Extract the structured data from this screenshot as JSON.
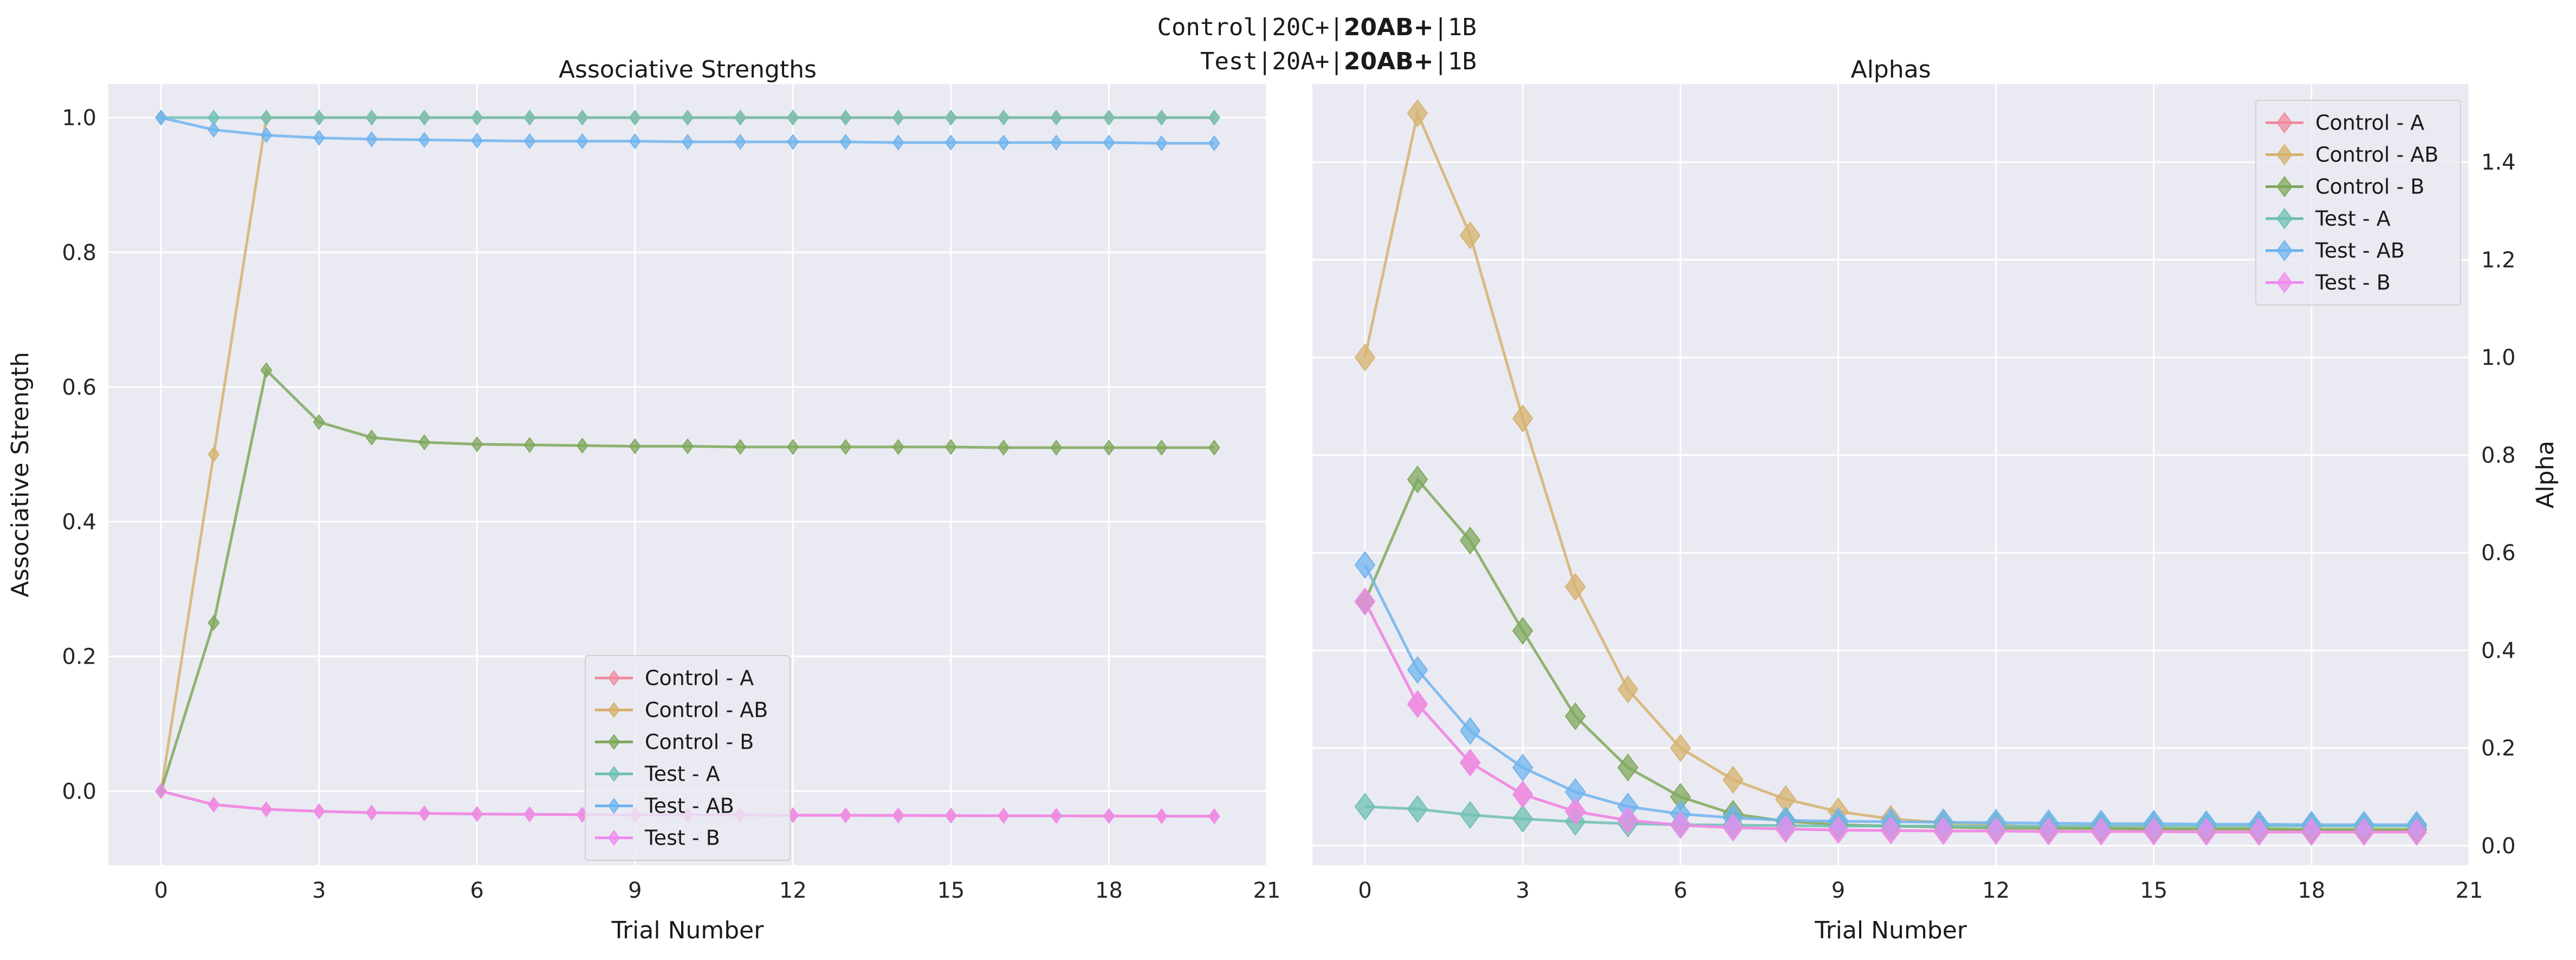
{
  "figure": {
    "suptitle_lines": [
      {
        "prefix": "Control|20C+|",
        "bold": "20AB+",
        "suffix": "|1B"
      },
      {
        "prefix": "Test|20A+|",
        "bold": "20AB+",
        "suffix": "|1B"
      }
    ]
  },
  "chart_data": [
    {
      "type": "line",
      "title": "Associative Strengths",
      "xlabel": "Trial Number",
      "ylabel": "Associative Strength",
      "xlim": [
        -1,
        21
      ],
      "ylim": [
        -0.11,
        1.05
      ],
      "xticks": [
        0,
        3,
        6,
        9,
        12,
        15,
        18,
        21
      ],
      "yticks": [
        0.0,
        0.2,
        0.4,
        0.6,
        0.8,
        1.0
      ],
      "ytick_labels": [
        "0.0",
        "0.2",
        "0.4",
        "0.6",
        "0.8",
        "1.0"
      ],
      "grid": true,
      "legend_position": "bottom-center",
      "marker": "diamond",
      "x": [
        0,
        1,
        2,
        3,
        4,
        5,
        6,
        7,
        8,
        9,
        10,
        11,
        12,
        13,
        14,
        15,
        16,
        17,
        18,
        19,
        20
      ],
      "series": [
        {
          "name": "Control - A",
          "color": "#f08ca0",
          "values": [
            0,
            -0.02,
            -0.027,
            -0.03,
            -0.032,
            -0.033,
            -0.034,
            -0.0345,
            -0.035,
            -0.0352,
            -0.0354,
            -0.0356,
            -0.0358,
            -0.036,
            -0.0362,
            -0.0364,
            -0.0366,
            -0.0368,
            -0.037,
            -0.0372,
            -0.0374
          ]
        },
        {
          "name": "Control - AB",
          "color": "#d6b26e",
          "values": [
            0,
            0.5,
            1.0,
            1.0,
            1.0,
            1.0,
            1.0,
            1.0,
            1.0,
            1.0,
            1.0,
            1.0,
            1.0,
            1.0,
            1.0,
            1.0,
            1.0,
            1.0,
            1.0,
            1.0,
            1.0
          ]
        },
        {
          "name": "Control - B",
          "color": "#7fa85c",
          "values": [
            0,
            0.25,
            0.625,
            0.548,
            0.525,
            0.518,
            0.515,
            0.514,
            0.513,
            0.512,
            0.512,
            0.511,
            0.511,
            0.511,
            0.511,
            0.511,
            0.51,
            0.51,
            0.51,
            0.51,
            0.51
          ]
        },
        {
          "name": "Test - A",
          "color": "#6fc0b4",
          "values": [
            1.0,
            1.0,
            1.0,
            1.0,
            1.0,
            1.0,
            1.0,
            1.0,
            1.0,
            1.0,
            1.0,
            1.0,
            1.0,
            1.0,
            1.0,
            1.0,
            1.0,
            1.0,
            1.0,
            1.0,
            1.0
          ]
        },
        {
          "name": "Test - AB",
          "color": "#6fb4ee",
          "values": [
            1.0,
            0.982,
            0.974,
            0.97,
            0.968,
            0.967,
            0.966,
            0.965,
            0.965,
            0.965,
            0.964,
            0.964,
            0.964,
            0.964,
            0.963,
            0.963,
            0.963,
            0.963,
            0.963,
            0.962,
            0.962
          ]
        },
        {
          "name": "Test - B",
          "color": "#ee8cee",
          "values": [
            0,
            -0.02,
            -0.027,
            -0.03,
            -0.032,
            -0.033,
            -0.034,
            -0.0345,
            -0.035,
            -0.0352,
            -0.0354,
            -0.0356,
            -0.0358,
            -0.036,
            -0.0362,
            -0.0364,
            -0.0366,
            -0.0368,
            -0.037,
            -0.0372,
            -0.0374
          ]
        }
      ]
    },
    {
      "type": "line",
      "title": "Alphas",
      "xlabel": "Trial Number",
      "ylabel": "Alpha",
      "xlim": [
        -1,
        21
      ],
      "ylim": [
        -0.04,
        1.56
      ],
      "xticks": [
        0,
        3,
        6,
        9,
        12,
        15,
        18,
        21
      ],
      "yticks": [
        0.0,
        0.2,
        0.4,
        0.6,
        0.8,
        1.0,
        1.2,
        1.4
      ],
      "ytick_labels": [
        "0.0",
        "0.2",
        "0.4",
        "0.6",
        "0.8",
        "1.0",
        "1.2",
        "1.4"
      ],
      "y_axis_side": "right",
      "grid": true,
      "legend_position": "top-right",
      "marker": "diamond",
      "x": [
        0,
        1,
        2,
        3,
        4,
        5,
        6,
        7,
        8,
        9,
        10,
        11,
        12,
        13,
        14,
        15,
        16,
        17,
        18,
        19,
        20
      ],
      "series": [
        {
          "name": "Control - A",
          "color": "#f08ca0",
          "values": [
            0.5,
            0.29,
            0.17,
            0.105,
            0.07,
            0.052,
            0.042,
            0.037,
            0.034,
            0.032,
            0.031,
            0.03,
            0.03,
            0.029,
            0.029,
            0.029,
            0.028,
            0.028,
            0.028,
            0.028,
            0.028
          ]
        },
        {
          "name": "Control - AB",
          "color": "#d6b26e",
          "values": [
            1.0,
            1.5,
            1.25,
            0.875,
            0.53,
            0.32,
            0.2,
            0.135,
            0.095,
            0.07,
            0.055,
            0.047,
            0.042,
            0.038,
            0.036,
            0.035,
            0.034,
            0.034,
            0.033,
            0.033,
            0.033
          ]
        },
        {
          "name": "Control - B",
          "color": "#7fa85c",
          "values": [
            0.5,
            0.75,
            0.625,
            0.44,
            0.265,
            0.16,
            0.1,
            0.065,
            0.05,
            0.043,
            0.04,
            0.038,
            0.036,
            0.035,
            0.035,
            0.034,
            0.034,
            0.034,
            0.033,
            0.033,
            0.033
          ]
        },
        {
          "name": "Test - A",
          "color": "#6fc0b4",
          "values": [
            0.08,
            0.075,
            0.063,
            0.055,
            0.049,
            0.045,
            0.043,
            0.042,
            0.041,
            0.04,
            0.04,
            0.04,
            0.04,
            0.04,
            0.04,
            0.04,
            0.04,
            0.04,
            0.04,
            0.04,
            0.04
          ]
        },
        {
          "name": "Test - AB",
          "color": "#6fb4ee",
          "values": [
            0.575,
            0.36,
            0.235,
            0.16,
            0.11,
            0.08,
            0.065,
            0.057,
            0.052,
            0.05,
            0.049,
            0.048,
            0.047,
            0.046,
            0.045,
            0.045,
            0.044,
            0.044,
            0.043,
            0.043,
            0.043
          ]
        },
        {
          "name": "Test - B",
          "color": "#ee8cee",
          "values": [
            0.5,
            0.29,
            0.17,
            0.105,
            0.07,
            0.052,
            0.042,
            0.037,
            0.034,
            0.032,
            0.031,
            0.03,
            0.03,
            0.029,
            0.029,
            0.029,
            0.028,
            0.028,
            0.028,
            0.028,
            0.028
          ]
        }
      ]
    }
  ]
}
